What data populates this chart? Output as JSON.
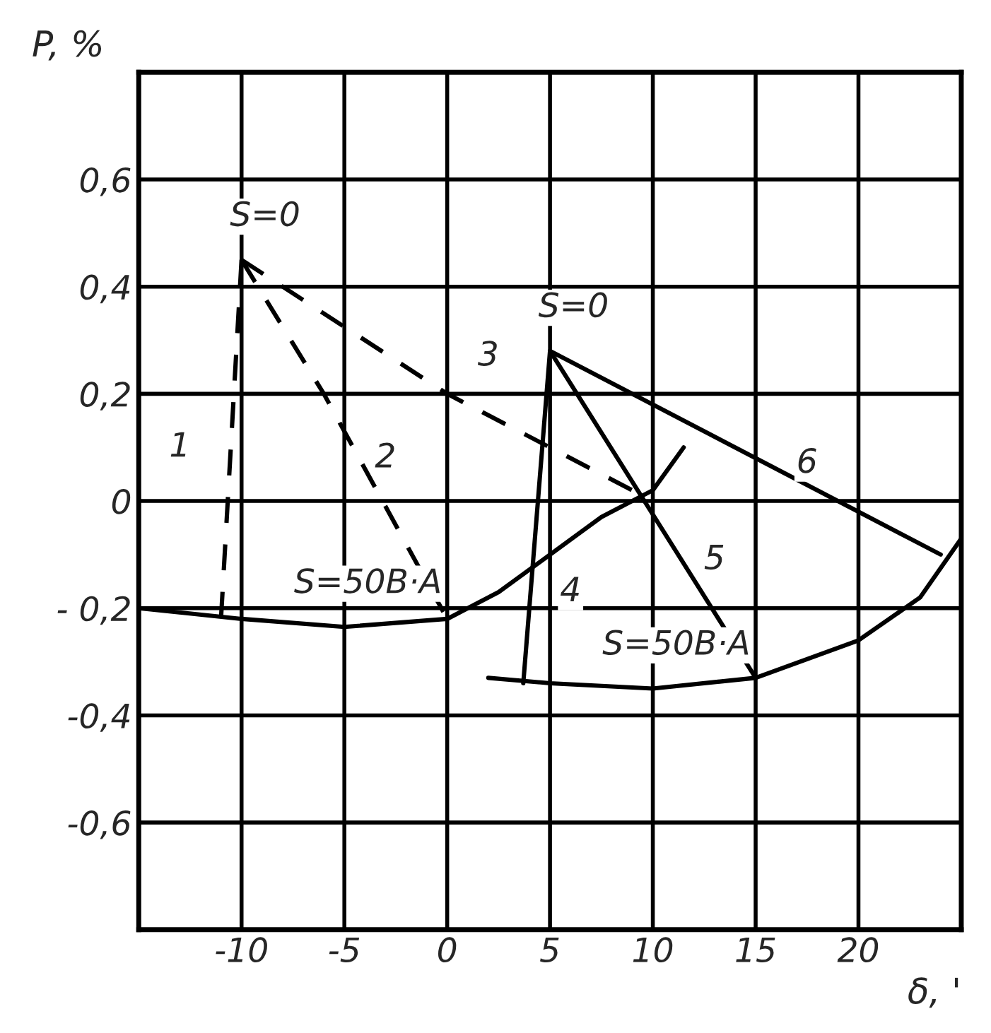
{
  "chart_data": {
    "type": "line",
    "xlabel": "δ, '",
    "ylabel": "P, %",
    "xlim": [
      -15,
      25
    ],
    "ylim": [
      -0.8,
      0.8
    ],
    "xticks": [
      {
        "value": -15,
        "label": null
      },
      -10,
      -5,
      0,
      5,
      10,
      15,
      20,
      {
        "value": 25,
        "label": null
      }
    ],
    "yticks": [
      {
        "value": -0.8,
        "label": null
      },
      {
        "value": -0.6,
        "label": "-0,6"
      },
      {
        "value": -0.4,
        "label": "-0,4"
      },
      {
        "value": -0.2,
        "label": "- 0,2"
      },
      0,
      {
        "value": 0.2,
        "label": "0,2"
      },
      {
        "value": 0.4,
        "label": "0,4"
      },
      {
        "value": 0.6,
        "label": "0,6"
      },
      {
        "value": 0.8,
        "label": null
      }
    ],
    "grid": true,
    "legend": false,
    "marker": "none",
    "series": [
      {
        "color": "#000000",
        "line_style": "dashed",
        "x": [
          -10,
          -11
        ],
        "values": [
          0.45,
          -0.22
        ]
      },
      {
        "color": "#000000",
        "line_style": "dashed",
        "x": [
          -10,
          -6,
          0
        ],
        "values": [
          0.45,
          0.2,
          -0.22
        ]
      },
      {
        "color": "#000000",
        "line_style": "dashed",
        "x": [
          -10,
          0,
          10
        ],
        "values": [
          0.45,
          0.2,
          0
        ]
      },
      {
        "color": "#000000",
        "line_style": "solid",
        "x": [
          -15,
          -10,
          -5,
          0,
          2.5,
          5,
          7.5,
          10,
          11.5
        ],
        "values": [
          -0.2,
          -0.22,
          -0.235,
          -0.22,
          -0.17,
          -0.1,
          -0.03,
          0.02,
          0.1
        ]
      },
      {
        "color": "#000000",
        "line_style": "solid",
        "x": [
          5,
          3.7
        ],
        "values": [
          0.28,
          -0.34
        ]
      },
      {
        "color": "#000000",
        "line_style": "solid",
        "x": [
          5,
          15
        ],
        "values": [
          0.28,
          -0.33
        ]
      },
      {
        "color": "#000000",
        "line_style": "solid",
        "x": [
          5,
          24
        ],
        "values": [
          0.28,
          -0.1
        ]
      },
      {
        "color": "#000000",
        "line_style": "solid",
        "x": [
          2,
          5,
          10,
          15,
          20,
          23,
          25
        ],
        "values": [
          -0.33,
          -0.34,
          -0.35,
          -0.33,
          -0.26,
          -0.18,
          -0.07
        ]
      }
    ],
    "annotations": [
      {
        "text": "S=0",
        "x": -10,
        "y": 0.45
      },
      {
        "text": "S=0",
        "x": 5,
        "y": 0.28
      },
      {
        "text": "S=50B·A",
        "x": -5,
        "y": -0.235
      },
      {
        "text": "S=50B·A",
        "x": 10,
        "y": -0.35
      },
      {
        "text": "1",
        "x": -13,
        "y": 0.1
      },
      {
        "text": "2",
        "x": -3,
        "y": 0.08
      },
      {
        "text": "3",
        "x": 2,
        "y": 0.27
      },
      {
        "text": "4",
        "x": 6,
        "y": -0.17
      },
      {
        "text": "5",
        "x": 13,
        "y": -0.11
      },
      {
        "text": "6",
        "x": 17.5,
        "y": 0.07
      }
    ]
  }
}
